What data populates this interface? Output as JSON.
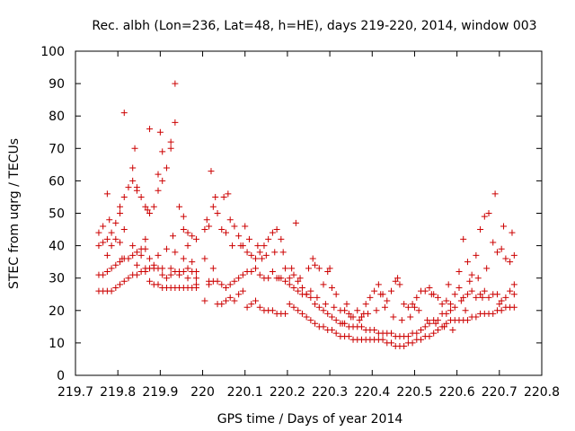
{
  "chart_data": {
    "type": "scatter",
    "title": "Rec. albh (Lon=236, Lat=48, h=HE), days 219-220, 2014, window 003",
    "xlabel": "GPS time / Days of year 2014",
    "ylabel": "STEC from uqrg / TECUs",
    "xlim": [
      219.7,
      220.8
    ],
    "ylim": [
      0,
      100
    ],
    "xticks": [
      "219.7",
      "219.8",
      "219.9",
      "220",
      "220.1",
      "220.2",
      "220.3",
      "220.4",
      "220.5",
      "220.6",
      "220.7",
      "220.8"
    ],
    "yticks": [
      "0",
      "10",
      "20",
      "30",
      "40",
      "50",
      "60",
      "70",
      "80",
      "90",
      "100"
    ],
    "grid": false,
    "legend": "none",
    "marker": "plus",
    "color": "#cc0000",
    "series": [
      {
        "x": [
          219.755,
          219.765,
          219.775,
          219.785,
          219.795,
          219.805,
          219.815,
          219.825,
          219.835,
          219.845,
          219.855,
          219.865,
          219.875,
          219.885,
          219.895,
          219.905,
          219.915,
          219.925,
          219.935,
          219.945,
          219.955,
          219.965,
          219.975,
          219.985,
          219.755,
          219.765,
          219.775,
          219.785,
          219.795,
          219.805,
          219.815,
          219.825,
          219.835,
          219.845,
          219.855,
          219.865,
          219.875,
          219.885,
          219.895,
          219.905,
          219.915,
          219.925,
          219.935,
          219.945,
          219.955,
          219.965,
          219.975,
          219.985,
          219.755,
          219.765,
          219.775,
          219.785,
          219.795,
          219.805,
          219.815,
          219.825,
          219.835,
          219.845,
          219.855,
          219.865,
          219.875,
          219.885,
          219.895,
          219.905,
          219.915,
          219.925,
          219.935,
          219.945,
          219.955,
          219.965,
          219.975,
          219.985,
          219.755,
          219.775,
          219.795,
          219.815,
          219.835,
          219.855,
          219.875,
          219.895,
          219.915,
          219.935,
          219.955,
          219.975,
          219.765,
          219.785,
          219.805,
          219.825,
          219.845,
          219.865,
          219.885,
          219.905,
          219.925,
          219.945,
          219.965,
          219.985,
          219.775,
          219.805,
          219.835,
          219.865,
          219.895,
          219.925,
          219.955,
          219.985,
          219.815,
          219.845,
          219.875,
          219.905,
          219.935,
          219.965,
          219.78,
          219.81,
          219.84,
          219.87,
          219.9,
          219.93,
          220.005,
          220.015,
          220.025,
          220.035,
          220.045,
          220.055,
          220.065,
          220.075,
          220.085,
          220.095,
          220.105,
          220.115,
          220.125,
          220.135,
          220.145,
          220.155,
          220.165,
          220.175,
          220.185,
          220.195,
          220.005,
          220.015,
          220.025,
          220.035,
          220.045,
          220.055,
          220.065,
          220.075,
          220.085,
          220.095,
          220.105,
          220.115,
          220.125,
          220.135,
          220.145,
          220.155,
          220.165,
          220.175,
          220.185,
          220.195,
          220.005,
          220.015,
          220.025,
          220.035,
          220.045,
          220.055,
          220.065,
          220.075,
          220.085,
          220.095,
          220.105,
          220.115,
          220.125,
          220.135,
          220.145,
          220.155,
          220.165,
          220.175,
          220.185,
          220.195,
          220.01,
          220.03,
          220.05,
          220.07,
          220.09,
          220.11,
          220.13,
          220.15,
          220.17,
          220.19,
          220.02,
          220.06,
          220.1,
          220.14,
          220.18,
          220.205,
          220.215,
          220.225,
          220.235,
          220.245,
          220.255,
          220.265,
          220.275,
          220.285,
          220.295,
          220.305,
          220.315,
          220.325,
          220.335,
          220.345,
          220.355,
          220.365,
          220.375,
          220.385,
          220.395,
          220.405,
          220.415,
          220.425,
          220.435,
          220.445,
          220.455,
          220.465,
          220.475,
          220.485,
          220.495,
          220.505,
          220.515,
          220.525,
          220.535,
          220.545,
          220.555,
          220.565,
          220.575,
          220.585,
          220.595,
          220.205,
          220.215,
          220.225,
          220.235,
          220.245,
          220.255,
          220.265,
          220.275,
          220.285,
          220.295,
          220.305,
          220.315,
          220.325,
          220.335,
          220.345,
          220.355,
          220.365,
          220.375,
          220.385,
          220.395,
          220.405,
          220.415,
          220.425,
          220.435,
          220.445,
          220.455,
          220.465,
          220.475,
          220.485,
          220.495,
          220.505,
          220.515,
          220.525,
          220.535,
          220.545,
          220.555,
          220.565,
          220.575,
          220.585,
          220.595,
          220.205,
          220.215,
          220.225,
          220.235,
          220.245,
          220.255,
          220.265,
          220.275,
          220.285,
          220.295,
          220.305,
          220.315,
          220.325,
          220.335,
          220.345,
          220.355,
          220.365,
          220.375,
          220.385,
          220.395,
          220.405,
          220.415,
          220.425,
          220.435,
          220.445,
          220.455,
          220.465,
          220.475,
          220.485,
          220.495,
          220.505,
          220.515,
          220.525,
          220.535,
          220.545,
          220.555,
          220.565,
          220.575,
          220.585,
          220.595,
          220.21,
          220.23,
          220.25,
          220.27,
          220.29,
          220.31,
          220.33,
          220.35,
          220.37,
          220.39,
          220.41,
          220.43,
          220.45,
          220.47,
          220.49,
          220.51,
          220.53,
          220.55,
          220.57,
          220.59,
          220.22,
          220.26,
          220.3,
          220.34,
          220.38,
          220.42,
          220.46,
          220.5,
          220.54,
          220.58,
          220.605,
          220.615,
          220.625,
          220.635,
          220.645,
          220.655,
          220.665,
          220.675,
          220.685,
          220.695,
          220.705,
          220.715,
          220.725,
          220.735,
          220.605,
          220.615,
          220.625,
          220.635,
          220.645,
          220.655,
          220.665,
          220.675,
          220.685,
          220.695,
          220.705,
          220.715,
          220.725,
          220.735,
          220.605,
          220.615,
          220.625,
          220.635,
          220.645,
          220.655,
          220.665,
          220.675,
          220.685,
          220.695,
          220.705,
          220.715,
          220.725,
          220.735,
          220.61,
          220.63,
          220.65,
          220.67,
          220.69,
          220.71,
          220.73,
          220.62,
          220.66,
          220.7,
          220.735
        ],
        "y": [
          26,
          26,
          26,
          26,
          27,
          28,
          29,
          30,
          31,
          31,
          32,
          32,
          29,
          28,
          28,
          27,
          27,
          27,
          27,
          27,
          27,
          27,
          27,
          27,
          31,
          31,
          32,
          33,
          34,
          35,
          36,
          36,
          37,
          38,
          39,
          39,
          33,
          33,
          33,
          31,
          30,
          31,
          32,
          32,
          32,
          33,
          32,
          32,
          40,
          41,
          42,
          44,
          47,
          50,
          55,
          58,
          60,
          57,
          55,
          52,
          50,
          52,
          57,
          60,
          64,
          70,
          78,
          52,
          45,
          44,
          43,
          42,
          44,
          37,
          42,
          45,
          40,
          37,
          36,
          37,
          39,
          38,
          36,
          35,
          46,
          40,
          41,
          36,
          34,
          33,
          34,
          33,
          33,
          31,
          30,
          28,
          56,
          52,
          64,
          42,
          62,
          72,
          49,
          30,
          81,
          58,
          76,
          69,
          90,
          40,
          48,
          36,
          70,
          51,
          75,
          43,
          23,
          28,
          33,
          22,
          22,
          23,
          24,
          23,
          25,
          26,
          21,
          22,
          23,
          21,
          20,
          20,
          20,
          19,
          19,
          19,
          36,
          29,
          29,
          29,
          28,
          27,
          28,
          29,
          30,
          31,
          32,
          32,
          33,
          31,
          30,
          30,
          32,
          30,
          30,
          29,
          45,
          46,
          52,
          50,
          45,
          44,
          48,
          46,
          43,
          40,
          38,
          37,
          36,
          38,
          40,
          42,
          44,
          45,
          42,
          33,
          48,
          55,
          55,
          40,
          40,
          42,
          40,
          37,
          38,
          38,
          63,
          56,
          46,
          36,
          30,
          22,
          21,
          20,
          19,
          18,
          17,
          16,
          15,
          15,
          14,
          14,
          13,
          12,
          12,
          12,
          11,
          11,
          11,
          11,
          11,
          11,
          11,
          11,
          10,
          10,
          9,
          9,
          9,
          10,
          10,
          11,
          11,
          12,
          12,
          13,
          14,
          15,
          16,
          17,
          17,
          28,
          27,
          26,
          25,
          25,
          24,
          22,
          21,
          20,
          19,
          18,
          17,
          16,
          16,
          15,
          15,
          15,
          15,
          14,
          14,
          14,
          13,
          13,
          13,
          13,
          12,
          12,
          12,
          12,
          13,
          13,
          14,
          15,
          16,
          17,
          17,
          19,
          19,
          20,
          21,
          30,
          31,
          29,
          27,
          25,
          26,
          34,
          33,
          28,
          32,
          27,
          25,
          20,
          20,
          19,
          18,
          20,
          18,
          22,
          24,
          26,
          28,
          25,
          23,
          26,
          29,
          28,
          22,
          21,
          22,
          24,
          26,
          26,
          27,
          25,
          24,
          22,
          23,
          22,
          25,
          33,
          30,
          33,
          24,
          22,
          21,
          16,
          18,
          17,
          19,
          20,
          21,
          18,
          17,
          18,
          20,
          17,
          16,
          15,
          14,
          47,
          36,
          33,
          22,
          19,
          25,
          30,
          21,
          25,
          28,
          17,
          17,
          17,
          18,
          18,
          19,
          19,
          19,
          19,
          20,
          20,
          21,
          21,
          21,
          27,
          24,
          25,
          26,
          24,
          25,
          26,
          24,
          25,
          25,
          23,
          24,
          26,
          25,
          32,
          42,
          35,
          31,
          37,
          45,
          49,
          50,
          41,
          38,
          39,
          36,
          35,
          37,
          23,
          29,
          30,
          33,
          56,
          46,
          44,
          20,
          24,
          22,
          28
        ]
      }
    ]
  }
}
